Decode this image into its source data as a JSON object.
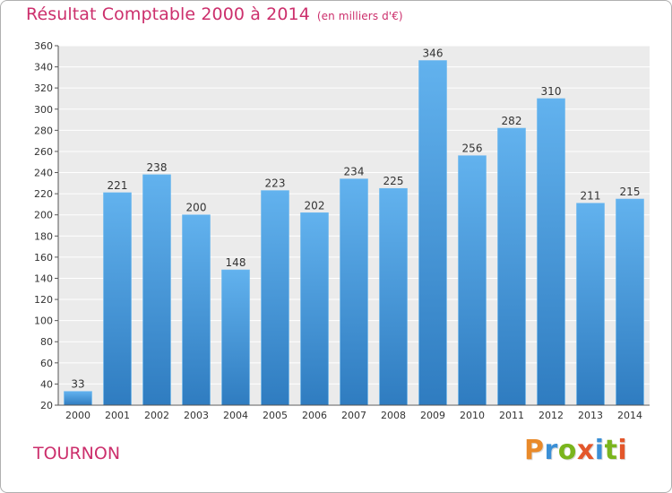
{
  "title": "Résultat Comptable 2000 à 2014",
  "unit": "(en milliers d'€)",
  "commune": "TOURNON",
  "logo": {
    "letters": [
      "P",
      "r",
      "o",
      "x",
      "i",
      "t",
      "i"
    ],
    "colors": [
      "#e98a2a",
      "#3a8fd6",
      "#7ab51d",
      "#e3572b",
      "#3a8fd6",
      "#7ab51d",
      "#e3572b"
    ]
  },
  "colors": {
    "bar": "#3f95d8",
    "bar_light": "#62b2ee",
    "bar_dark": "#2f7cc0",
    "title": "#cc2f6c",
    "plot_bg": "#ebebeb",
    "grid": "#ffffff"
  },
  "chart_data": {
    "type": "bar",
    "categories": [
      "2000",
      "2001",
      "2002",
      "2003",
      "2004",
      "2005",
      "2006",
      "2007",
      "2008",
      "2009",
      "2010",
      "2011",
      "2012",
      "2013",
      "2014"
    ],
    "values": [
      33,
      221,
      238,
      200,
      148,
      223,
      202,
      234,
      225,
      346,
      256,
      282,
      310,
      211,
      215
    ],
    "ylim": [
      20,
      360
    ],
    "yticks": [
      20,
      40,
      60,
      80,
      100,
      120,
      140,
      160,
      180,
      200,
      220,
      240,
      260,
      280,
      300,
      320,
      340,
      360
    ],
    "grid": true,
    "legend": "none"
  }
}
